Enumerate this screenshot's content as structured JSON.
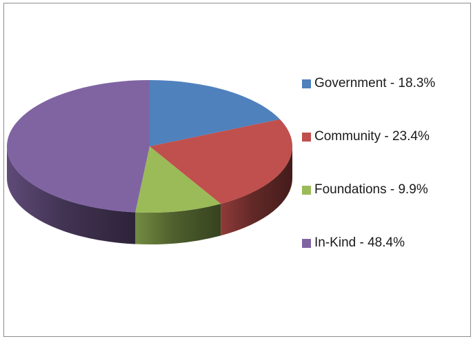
{
  "chart_data": {
    "type": "pie",
    "title": "",
    "legend_position": "right",
    "slices": [
      {
        "label": "Government",
        "value": 18.3,
        "legend": "Government - 18.3%",
        "color": "#4f81bd"
      },
      {
        "label": "Community",
        "value": 23.4,
        "legend": "Community - 23.4%",
        "color": "#c0504d"
      },
      {
        "label": "Foundations",
        "value": 9.9,
        "legend": "Foundations - 9.9%",
        "color": "#9bbb59"
      },
      {
        "label": "In-Kind",
        "value": 48.4,
        "legend": "In-Kind - 48.4%",
        "color": "#8064a2"
      }
    ]
  }
}
